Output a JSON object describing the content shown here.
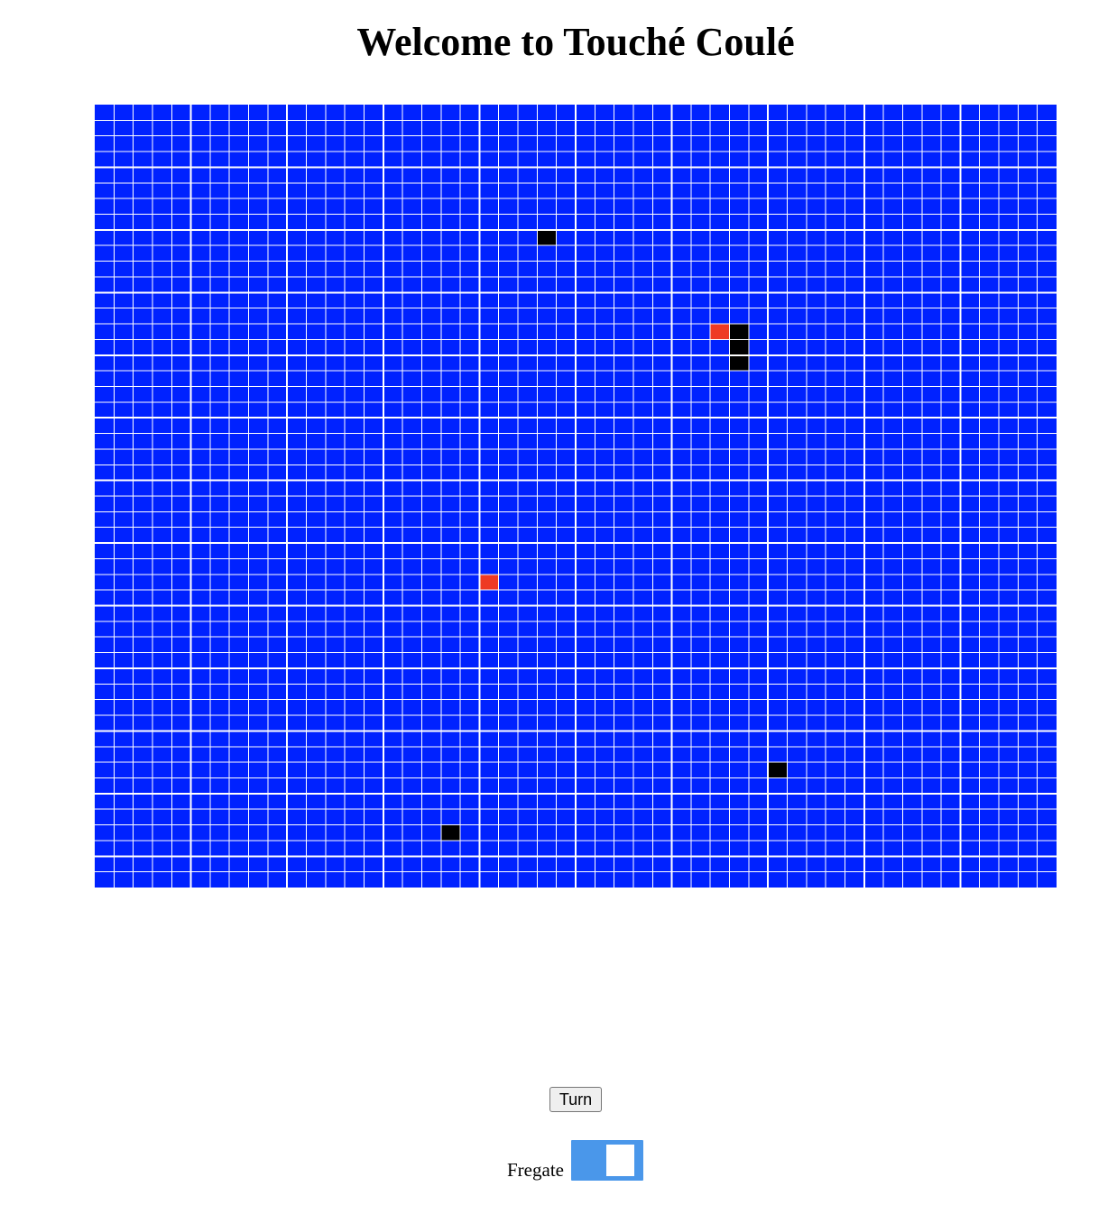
{
  "title": "Welcome to Touché Coulé",
  "board": {
    "columns": 50,
    "rows": 50,
    "colors": {
      "water": "#0022ff",
      "grid_line": "#ffffff",
      "hit": "#ee3a24",
      "ship": "#000000"
    },
    "hit_cells": [
      {
        "row": 14,
        "col": 32
      },
      {
        "row": 30,
        "col": 20
      }
    ],
    "ship_cells": [
      {
        "row": 8,
        "col": 23
      },
      {
        "row": 14,
        "col": 33
      },
      {
        "row": 15,
        "col": 33
      },
      {
        "row": 16,
        "col": 33
      },
      {
        "row": 42,
        "col": 35
      },
      {
        "row": 46,
        "col": 18
      }
    ]
  },
  "controls": {
    "turn_button_label": "Turn",
    "ship_label": "Fregate",
    "ship_toggle": {
      "state": "on",
      "track_color": "#4a97ea",
      "knob_color": "#ffffff"
    }
  }
}
